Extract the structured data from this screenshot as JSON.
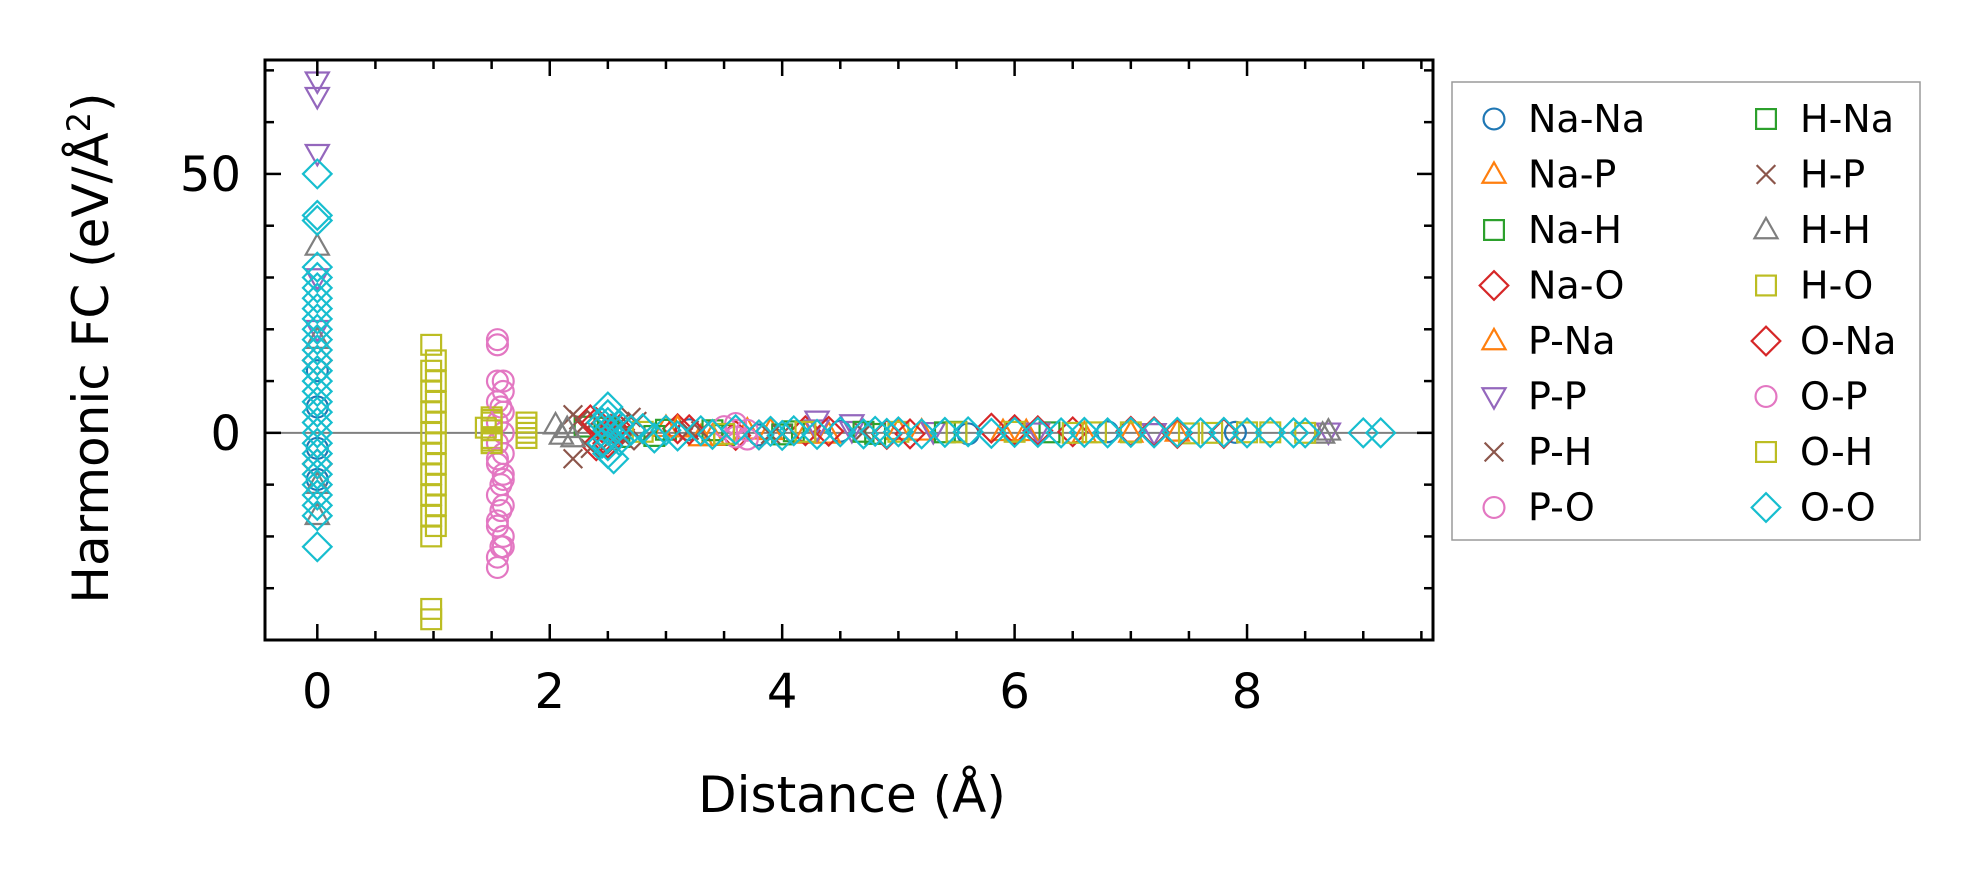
{
  "chart_data": {
    "type": "scatter",
    "title": "",
    "xlabel": "Distance (Å)",
    "ylabel": "Harmonic FC (eV/Å²)",
    "ylabel_parts": {
      "main": "Harmonic FC (eV/Å",
      "sup": "2",
      "tail": ")"
    },
    "xlim": [
      -0.45,
      9.6
    ],
    "ylim": [
      -40,
      72
    ],
    "x_ticks": [
      0,
      2,
      4,
      6,
      8
    ],
    "x_minor_ticks": [
      0.5,
      1,
      1.5,
      2.5,
      3,
      3.5,
      4.5,
      5,
      5.5,
      6.5,
      7,
      7.5,
      8.5,
      9,
      9.5
    ],
    "y_ticks": [
      0,
      50
    ],
    "y_minor_ticks": [
      -30,
      -20,
      -10,
      10,
      20,
      30,
      40,
      60,
      70
    ],
    "zero_line": true,
    "grid": false,
    "legend_position": "outside-right",
    "series": [
      {
        "name": "Na-Na",
        "marker": "circle",
        "color": "#1f77b4",
        "points": [
          [
            0,
            12
          ],
          [
            0,
            5
          ],
          [
            0,
            -3
          ],
          [
            0,
            -9
          ],
          [
            3.2,
            0.6
          ],
          [
            3.8,
            -0.4
          ],
          [
            4.5,
            0.3
          ],
          [
            5.6,
            -0.2
          ],
          [
            6.8,
            0.2
          ],
          [
            7.9,
            0.1
          ]
        ]
      },
      {
        "name": "Na-P",
        "marker": "triangle-up",
        "color": "#ff7f0e",
        "points": [
          [
            3.0,
            1.0
          ],
          [
            3.3,
            -0.8
          ],
          [
            3.7,
            0.5
          ],
          [
            4.2,
            -0.3
          ],
          [
            5.0,
            0.4
          ],
          [
            5.9,
            0.2
          ],
          [
            6.6,
            -0.2
          ],
          [
            7.4,
            0.1
          ]
        ]
      },
      {
        "name": "Na-H",
        "marker": "square",
        "color": "#2ca02c",
        "points": [
          [
            2.3,
            1.2
          ],
          [
            2.6,
            -0.8
          ],
          [
            3.0,
            0.6
          ],
          [
            3.5,
            -0.4
          ],
          [
            4.1,
            0.3
          ],
          [
            4.8,
            -0.2
          ],
          [
            5.5,
            0.2
          ],
          [
            6.3,
            0.1
          ]
        ]
      },
      {
        "name": "Na-O",
        "marker": "diamond",
        "color": "#d62728",
        "points": [
          [
            0,
            14
          ],
          [
            0,
            -6
          ],
          [
            2.35,
            2.5
          ],
          [
            2.4,
            -2.5
          ],
          [
            2.45,
            1.0
          ],
          [
            2.5,
            -1.2
          ],
          [
            2.6,
            0.6
          ],
          [
            3.1,
            0.8
          ],
          [
            3.6,
            -0.5
          ],
          [
            4.2,
            0.4
          ],
          [
            4.9,
            -0.3
          ],
          [
            5.8,
            0.9
          ],
          [
            6.0,
            0.6
          ],
          [
            6.5,
            0.2
          ],
          [
            7.0,
            0.3
          ],
          [
            7.8,
            -0.1
          ]
        ]
      },
      {
        "name": "P-Na",
        "marker": "triangle-up",
        "color": "#ff7f0e",
        "points": [
          [
            3.1,
            0.9
          ],
          [
            3.4,
            -0.7
          ],
          [
            3.9,
            0.4
          ],
          [
            4.4,
            -0.3
          ],
          [
            5.2,
            0.3
          ],
          [
            6.1,
            0.2
          ],
          [
            7.0,
            -0.1
          ]
        ]
      },
      {
        "name": "P-P",
        "marker": "triangle-down",
        "color": "#9467bd",
        "points": [
          [
            0,
            68
          ],
          [
            0,
            65
          ],
          [
            0,
            54
          ],
          [
            0,
            30
          ],
          [
            0,
            20
          ],
          [
            4.3,
            2.5
          ],
          [
            4.3,
            0.8
          ],
          [
            4.6,
            1.8
          ],
          [
            4.6,
            0.5
          ],
          [
            5.3,
            0.3
          ],
          [
            6.2,
            0.2
          ],
          [
            7.2,
            0.1
          ],
          [
            8.7,
            0.2
          ]
        ]
      },
      {
        "name": "P-H",
        "marker": "x",
        "color": "#8c564b",
        "points": [
          [
            2.2,
            3.5
          ],
          [
            2.2,
            -5
          ],
          [
            2.3,
            1.5
          ],
          [
            2.4,
            2.5
          ],
          [
            2.5,
            -2
          ],
          [
            2.6,
            1.8
          ],
          [
            2.7,
            3
          ],
          [
            2.8,
            -1.5
          ],
          [
            3.2,
            0.5
          ],
          [
            3.9,
            -0.3
          ],
          [
            4.7,
            0.2
          ]
        ]
      },
      {
        "name": "P-O",
        "marker": "circle",
        "color": "#e377c2",
        "points": [
          [
            1.55,
            18
          ],
          [
            1.55,
            17
          ],
          [
            1.6,
            10
          ],
          [
            1.6,
            8
          ],
          [
            1.55,
            6
          ],
          [
            1.6,
            4
          ],
          [
            1.55,
            2
          ],
          [
            1.6,
            0
          ],
          [
            1.55,
            -2
          ],
          [
            1.6,
            -4
          ],
          [
            1.55,
            -6
          ],
          [
            1.6,
            -8
          ],
          [
            1.58,
            -10
          ],
          [
            1.55,
            -12
          ],
          [
            1.6,
            -14
          ],
          [
            1.55,
            -18
          ],
          [
            1.6,
            -20
          ],
          [
            1.58,
            -22
          ],
          [
            1.55,
            -24
          ],
          [
            1.6,
            -22
          ],
          [
            1.55,
            -26
          ],
          [
            3.6,
            1.8
          ],
          [
            3.6,
            0.5
          ],
          [
            3.7,
            -1.2
          ]
        ]
      },
      {
        "name": "H-Na",
        "marker": "square",
        "color": "#2ca02c",
        "points": [
          [
            2.5,
            1.0
          ],
          [
            2.9,
            -0.6
          ],
          [
            3.4,
            0.5
          ],
          [
            4.0,
            -0.3
          ],
          [
            4.7,
            0.2
          ],
          [
            5.4,
            0.1
          ]
        ]
      },
      {
        "name": "H-P",
        "marker": "x",
        "color": "#8c564b",
        "points": [
          [
            2.25,
            2.5
          ],
          [
            2.35,
            -3
          ],
          [
            2.5,
            2
          ],
          [
            2.65,
            -1.5
          ],
          [
            2.75,
            2.2
          ],
          [
            3.3,
            0.4
          ],
          [
            4.0,
            -0.2
          ]
        ]
      },
      {
        "name": "H-H",
        "marker": "triangle-up",
        "color": "#7f7f7f",
        "points": [
          [
            0,
            36
          ],
          [
            0,
            18
          ],
          [
            0,
            -10
          ],
          [
            0,
            -16
          ],
          [
            2.05,
            1.5
          ],
          [
            2.1,
            -0.5
          ],
          [
            2.15,
            0.8
          ],
          [
            2.2,
            -1.0
          ],
          [
            8.7,
            0.3
          ],
          [
            8.65,
            -0.3
          ]
        ]
      },
      {
        "name": "H-O",
        "marker": "square",
        "color": "#bcbd22",
        "points": [
          [
            1.5,
            3
          ],
          [
            1.5,
            2
          ],
          [
            1.5,
            0.5
          ],
          [
            1.5,
            -1
          ],
          [
            1.5,
            -2
          ],
          [
            1.45,
            1
          ],
          [
            1.8,
            2
          ],
          [
            1.8,
            0
          ],
          [
            1.8,
            -1
          ],
          [
            5.0,
            0.2
          ],
          [
            6.0,
            0.2
          ],
          [
            6.5,
            0
          ],
          [
            7.0,
            0.1
          ],
          [
            7.5,
            -0.1
          ],
          [
            8.0,
            0.1
          ],
          [
            8.5,
            0
          ]
        ]
      },
      {
        "name": "O-Na",
        "marker": "diamond",
        "color": "#d62728",
        "points": [
          [
            2.4,
            2.0
          ],
          [
            2.5,
            -2.0
          ],
          [
            2.55,
            0.8
          ],
          [
            3.2,
            0.6
          ],
          [
            3.8,
            -0.4
          ],
          [
            4.4,
            0.3
          ],
          [
            5.1,
            -0.2
          ],
          [
            6.2,
            0.4
          ],
          [
            7.2,
            0.2
          ],
          [
            7.4,
            -0.1
          ]
        ]
      },
      {
        "name": "O-P",
        "marker": "circle",
        "color": "#e377c2",
        "points": [
          [
            1.55,
            10
          ],
          [
            1.58,
            5
          ],
          [
            1.55,
            -5
          ],
          [
            1.6,
            -9
          ],
          [
            1.58,
            -15
          ],
          [
            1.55,
            -17
          ],
          [
            3.5,
            1.2
          ],
          [
            3.6,
            -0.8
          ],
          [
            3.7,
            0.5
          ]
        ]
      },
      {
        "name": "O-H",
        "marker": "square",
        "color": "#bcbd22",
        "points": [
          [
            0.98,
            17
          ],
          [
            1.02,
            14
          ],
          [
            0.98,
            12
          ],
          [
            1.02,
            10
          ],
          [
            0.98,
            8
          ],
          [
            1.02,
            6
          ],
          [
            0.98,
            4
          ],
          [
            1.02,
            2
          ],
          [
            0.98,
            0
          ],
          [
            1.02,
            -2
          ],
          [
            0.98,
            -4
          ],
          [
            1.02,
            -6
          ],
          [
            0.98,
            -8
          ],
          [
            1.02,
            -10
          ],
          [
            0.98,
            -12
          ],
          [
            1.02,
            -14
          ],
          [
            0.98,
            -16
          ],
          [
            1.02,
            -18
          ],
          [
            0.98,
            -20
          ],
          [
            0.98,
            -34
          ],
          [
            0.98,
            -36
          ],
          [
            1.5,
            2.5
          ],
          [
            1.5,
            -1.5
          ],
          [
            1.8,
            1
          ],
          [
            2.8,
            0.2
          ],
          [
            3.5,
            -0.2
          ],
          [
            4.2,
            0.2
          ],
          [
            5.5,
            0.1
          ],
          [
            6.7,
            0.1
          ],
          [
            7.7,
            0
          ],
          [
            8.2,
            0.1
          ]
        ]
      },
      {
        "name": "O-O",
        "marker": "diamond",
        "color": "#17becf",
        "points": [
          [
            0,
            50
          ],
          [
            0,
            42
          ],
          [
            0,
            41
          ],
          [
            0,
            32
          ],
          [
            0,
            30
          ],
          [
            0,
            28
          ],
          [
            0,
            26
          ],
          [
            0,
            24
          ],
          [
            0,
            22
          ],
          [
            0,
            20
          ],
          [
            0,
            18
          ],
          [
            0,
            16
          ],
          [
            0,
            14
          ],
          [
            0,
            12
          ],
          [
            0,
            10
          ],
          [
            0,
            8
          ],
          [
            0,
            6
          ],
          [
            0,
            4
          ],
          [
            0,
            2
          ],
          [
            0,
            0
          ],
          [
            0,
            -2
          ],
          [
            0,
            -4
          ],
          [
            0,
            -6
          ],
          [
            0,
            -8
          ],
          [
            0,
            -10
          ],
          [
            0,
            -12
          ],
          [
            0,
            -14
          ],
          [
            0,
            -16
          ],
          [
            0,
            -22
          ],
          [
            2.5,
            5
          ],
          [
            2.5,
            3.5
          ],
          [
            2.5,
            2
          ],
          [
            2.5,
            0.5
          ],
          [
            2.5,
            -1
          ],
          [
            2.5,
            -2.5
          ],
          [
            2.5,
            -4
          ],
          [
            2.55,
            -5
          ],
          [
            2.45,
            2
          ],
          [
            2.45,
            -2
          ],
          [
            2.6,
            1.5
          ],
          [
            2.6,
            -1.5
          ],
          [
            2.7,
            0.5
          ],
          [
            2.9,
            -1
          ],
          [
            2.8,
            0.8
          ],
          [
            3.0,
            0.5
          ],
          [
            3.1,
            -0.6
          ],
          [
            3.3,
            0.4
          ],
          [
            3.4,
            -0.3
          ],
          [
            3.6,
            0.6
          ],
          [
            3.8,
            -0.4
          ],
          [
            3.9,
            0.3
          ],
          [
            4.0,
            -0.5
          ],
          [
            4.1,
            0.4
          ],
          [
            4.3,
            -0.3
          ],
          [
            4.5,
            0.2
          ],
          [
            4.7,
            -0.2
          ],
          [
            4.8,
            0.3
          ],
          [
            4.9,
            -0.1
          ],
          [
            5.0,
            0.2
          ],
          [
            5.2,
            -0.2
          ],
          [
            5.4,
            0.1
          ],
          [
            5.6,
            0.2
          ],
          [
            5.8,
            -0.1
          ],
          [
            6.0,
            0.1
          ],
          [
            6.2,
            0.1
          ],
          [
            6.4,
            0
          ],
          [
            6.6,
            0.1
          ],
          [
            6.8,
            0
          ],
          [
            7.0,
            0.1
          ],
          [
            7.2,
            0
          ],
          [
            7.4,
            0.1
          ],
          [
            7.6,
            0
          ],
          [
            7.8,
            0.1
          ],
          [
            8.0,
            0
          ],
          [
            8.2,
            0.1
          ],
          [
            8.4,
            0
          ],
          [
            8.5,
            0
          ],
          [
            9.0,
            0
          ],
          [
            9.15,
            0
          ]
        ]
      }
    ]
  }
}
